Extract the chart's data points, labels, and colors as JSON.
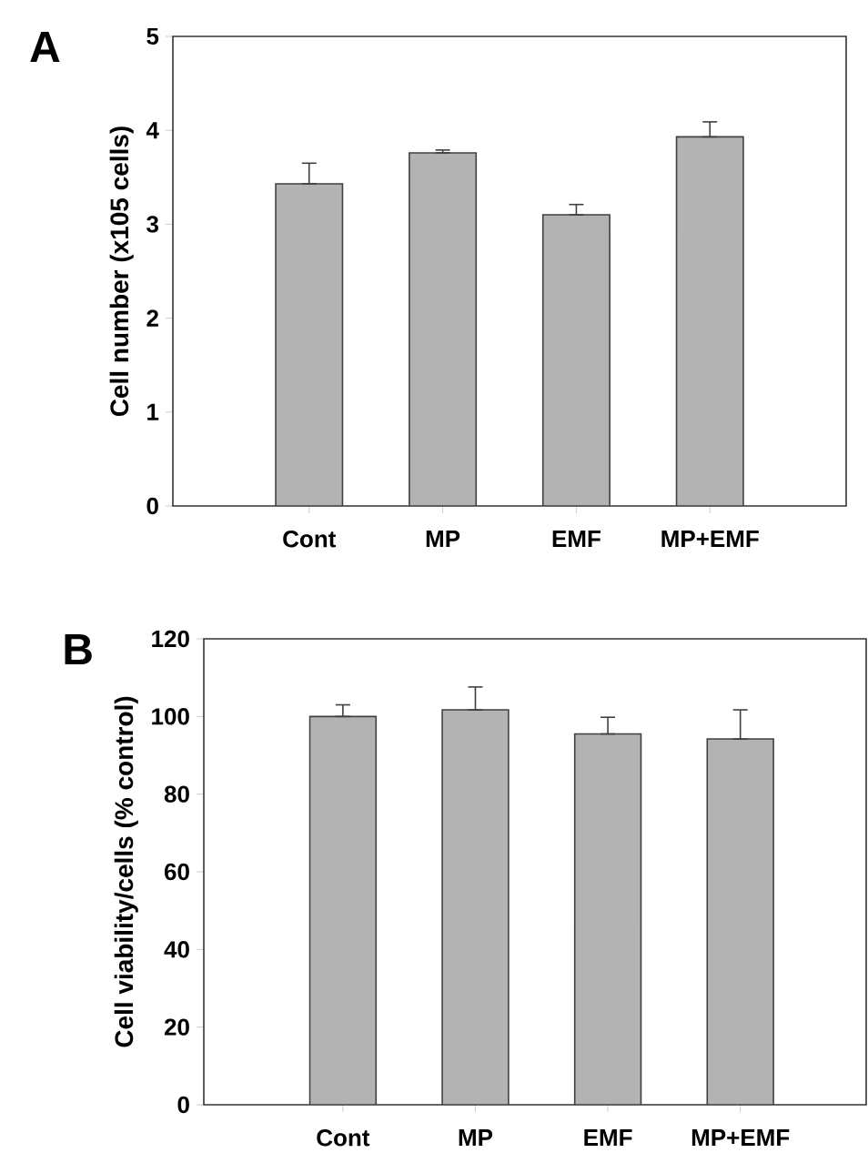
{
  "chart_data": [
    {
      "type": "bar",
      "title": "A",
      "ylabel": "Cell number (x105 cells)",
      "categories": [
        "Cont",
        "MP",
        "EMF",
        "MP+EMF"
      ],
      "values": [
        3.43,
        3.76,
        3.1,
        3.93
      ],
      "errors": [
        [
          3.43,
          3.65
        ],
        [
          3.76,
          3.79
        ],
        [
          3.1,
          3.21
        ],
        [
          3.93,
          4.09
        ]
      ],
      "color": "#b3b3b3",
      "ylim": [
        0,
        5
      ],
      "yticks": [
        0,
        1,
        2,
        3,
        4,
        5
      ],
      "grid": false
    },
    {
      "type": "bar",
      "title": "B",
      "ylabel": "Cell viability/cells (% control)",
      "categories": [
        "Cont",
        "MP",
        "EMF",
        "MP+EMF"
      ],
      "values": [
        100,
        101.7,
        95.5,
        94.2
      ],
      "errors": [
        [
          100,
          103
        ],
        [
          101.7,
          107.6
        ],
        [
          95.5,
          99.8
        ],
        [
          94.2,
          101.7
        ]
      ],
      "color": "#b3b3b3",
      "ylim": [
        0,
        120
      ],
      "yticks": [
        0,
        20,
        40,
        60,
        80,
        100,
        120
      ],
      "grid": false
    }
  ]
}
